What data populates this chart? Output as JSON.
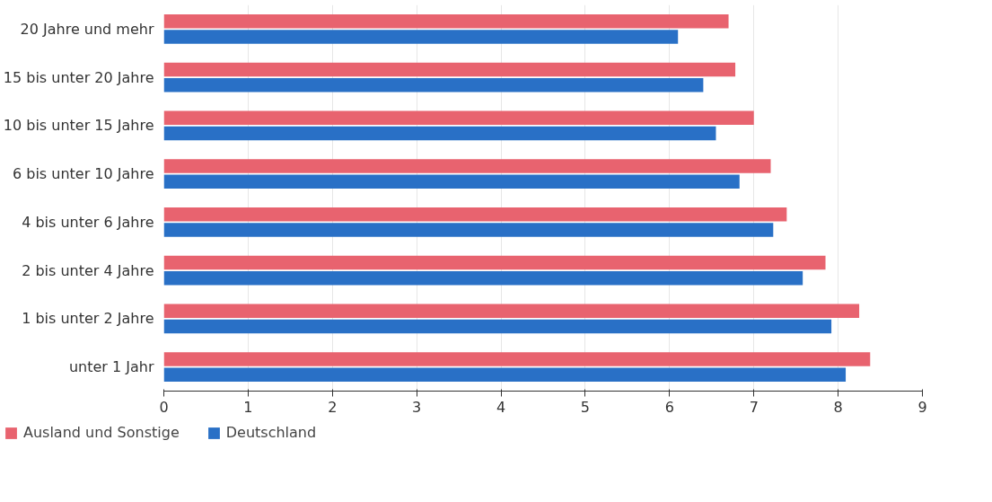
{
  "chart_data": {
    "type": "bar",
    "orientation": "horizontal",
    "categories": [
      "20 Jahre und mehr",
      "15 bis unter 20 Jahre",
      "10 bis unter 15 Jahre",
      "6 bis unter 10 Jahre",
      "4 bis unter 6 Jahre",
      "2 bis unter 4 Jahre",
      "1 bis unter 2 Jahre",
      "unter 1 Jahr"
    ],
    "series": [
      {
        "name": "Ausland und Sonstige",
        "color": "#e8636f",
        "values": [
          6.7,
          6.78,
          7.0,
          7.2,
          7.39,
          7.85,
          8.25,
          8.38
        ]
      },
      {
        "name": "Deutschland",
        "color": "#2970c6",
        "values": [
          6.1,
          6.4,
          6.55,
          6.83,
          7.23,
          7.58,
          7.92,
          8.09
        ]
      }
    ],
    "xlim": [
      0,
      9
    ],
    "xticks": [
      0,
      1,
      2,
      3,
      4,
      5,
      6,
      7,
      8,
      9
    ],
    "grid": "x",
    "legend": "bottom left"
  }
}
